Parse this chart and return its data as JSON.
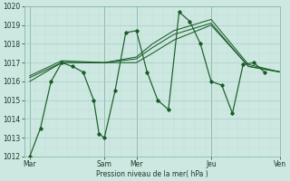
{
  "background_color": "#cce8e0",
  "grid_color_major": "#aacccc",
  "grid_color_minor": "#c0ddd8",
  "line_color": "#1a5c28",
  "ylabel_text": "Pression niveau de la mer( hPa )",
  "ylim": [
    1012,
    1020
  ],
  "xlim": [
    0,
    24
  ],
  "xtick_positions": [
    0.5,
    7.5,
    10.5,
    17.5,
    24
  ],
  "xtick_labels": [
    "Mar",
    "Sam",
    "Mer",
    "Jeu",
    "Ven"
  ],
  "vline_positions": [
    0.5,
    7.5,
    10.5,
    17.5,
    24
  ],
  "main_series_x": [
    0.5,
    1.5,
    2.5,
    3.5,
    4.5,
    5.5,
    6.5,
    7.0,
    7.5,
    8.5,
    9.5,
    10.5,
    11.5,
    12.5,
    13.5,
    14.5,
    15.5,
    16.5,
    17.5,
    18.5,
    19.5,
    20.5,
    21.5,
    22.5
  ],
  "main_series_y": [
    1012.0,
    1013.5,
    1016.0,
    1017.0,
    1016.8,
    1016.5,
    1015.0,
    1013.2,
    1013.0,
    1015.5,
    1018.6,
    1018.7,
    1016.5,
    1015.0,
    1014.5,
    1019.7,
    1019.2,
    1018.0,
    1016.0,
    1015.8,
    1014.3,
    1016.9,
    1017.0,
    1016.5
  ],
  "smooth_line1_x": [
    0.5,
    3.5,
    7.5,
    10.5,
    12.0,
    14.0,
    17.5,
    21.0,
    24.0
  ],
  "smooth_line1_y": [
    1016.0,
    1017.0,
    1017.0,
    1017.0,
    1017.5,
    1018.2,
    1019.0,
    1016.8,
    1016.5
  ],
  "smooth_line2_x": [
    0.5,
    3.5,
    7.5,
    10.5,
    12.0,
    14.0,
    17.5,
    21.0,
    24.0
  ],
  "smooth_line2_y": [
    1016.2,
    1017.0,
    1017.0,
    1017.2,
    1017.8,
    1018.5,
    1019.1,
    1016.8,
    1016.5
  ],
  "smooth_line3_x": [
    0.5,
    3.5,
    7.5,
    10.5,
    12.0,
    14.0,
    17.5,
    21.0,
    24.0
  ],
  "smooth_line3_y": [
    1016.3,
    1017.1,
    1017.0,
    1017.3,
    1018.0,
    1018.7,
    1019.3,
    1016.9,
    1016.5
  ]
}
